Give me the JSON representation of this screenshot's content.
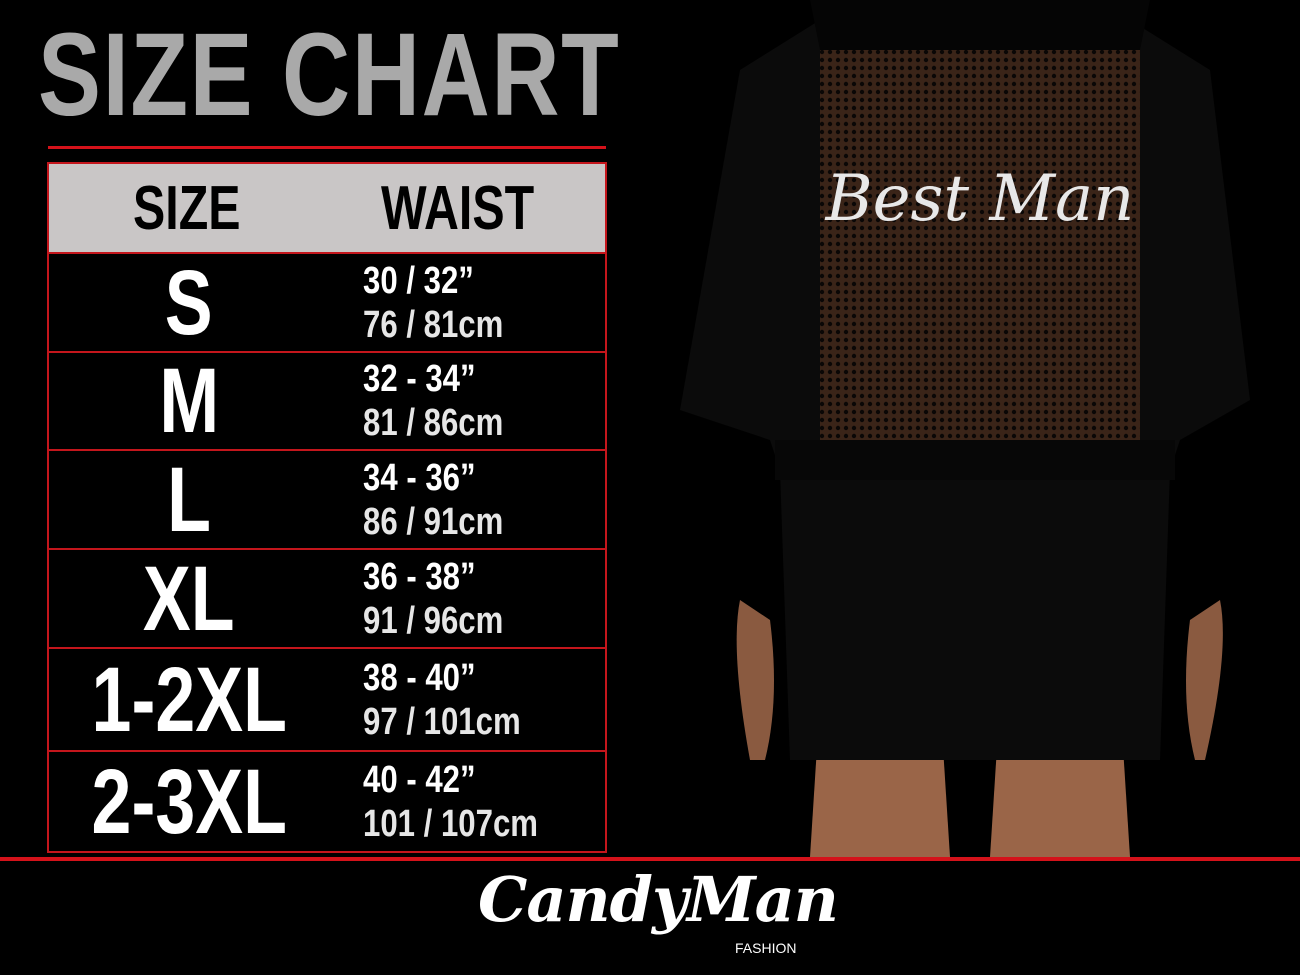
{
  "title": "SIZE CHART",
  "table": {
    "headers": [
      "SIZE",
      "WAIST"
    ],
    "rows": [
      {
        "size": "S",
        "inches": "30 / 32”",
        "cm": "76 / 81cm"
      },
      {
        "size": "M",
        "inches": "32 - 34”",
        "cm": "81 / 86cm"
      },
      {
        "size": "L",
        "inches": "34 - 36”",
        "cm": "86 / 91cm"
      },
      {
        "size": "XL",
        "inches": "36 - 38”",
        "cm": "91 / 96cm"
      },
      {
        "size": "1-2XL",
        "inches": "38 - 40”",
        "cm": "97 / 101cm"
      },
      {
        "size": "2-3XL",
        "inches": "40 - 42”",
        "cm": "101 / 107cm"
      }
    ]
  },
  "product_print": "Best Man",
  "brand": {
    "name": "CandyMan",
    "sub": "FASHION"
  },
  "colors": {
    "accent": "#d4121a",
    "title": "#a9a9a9",
    "header_bg": "#c9c6c6"
  }
}
